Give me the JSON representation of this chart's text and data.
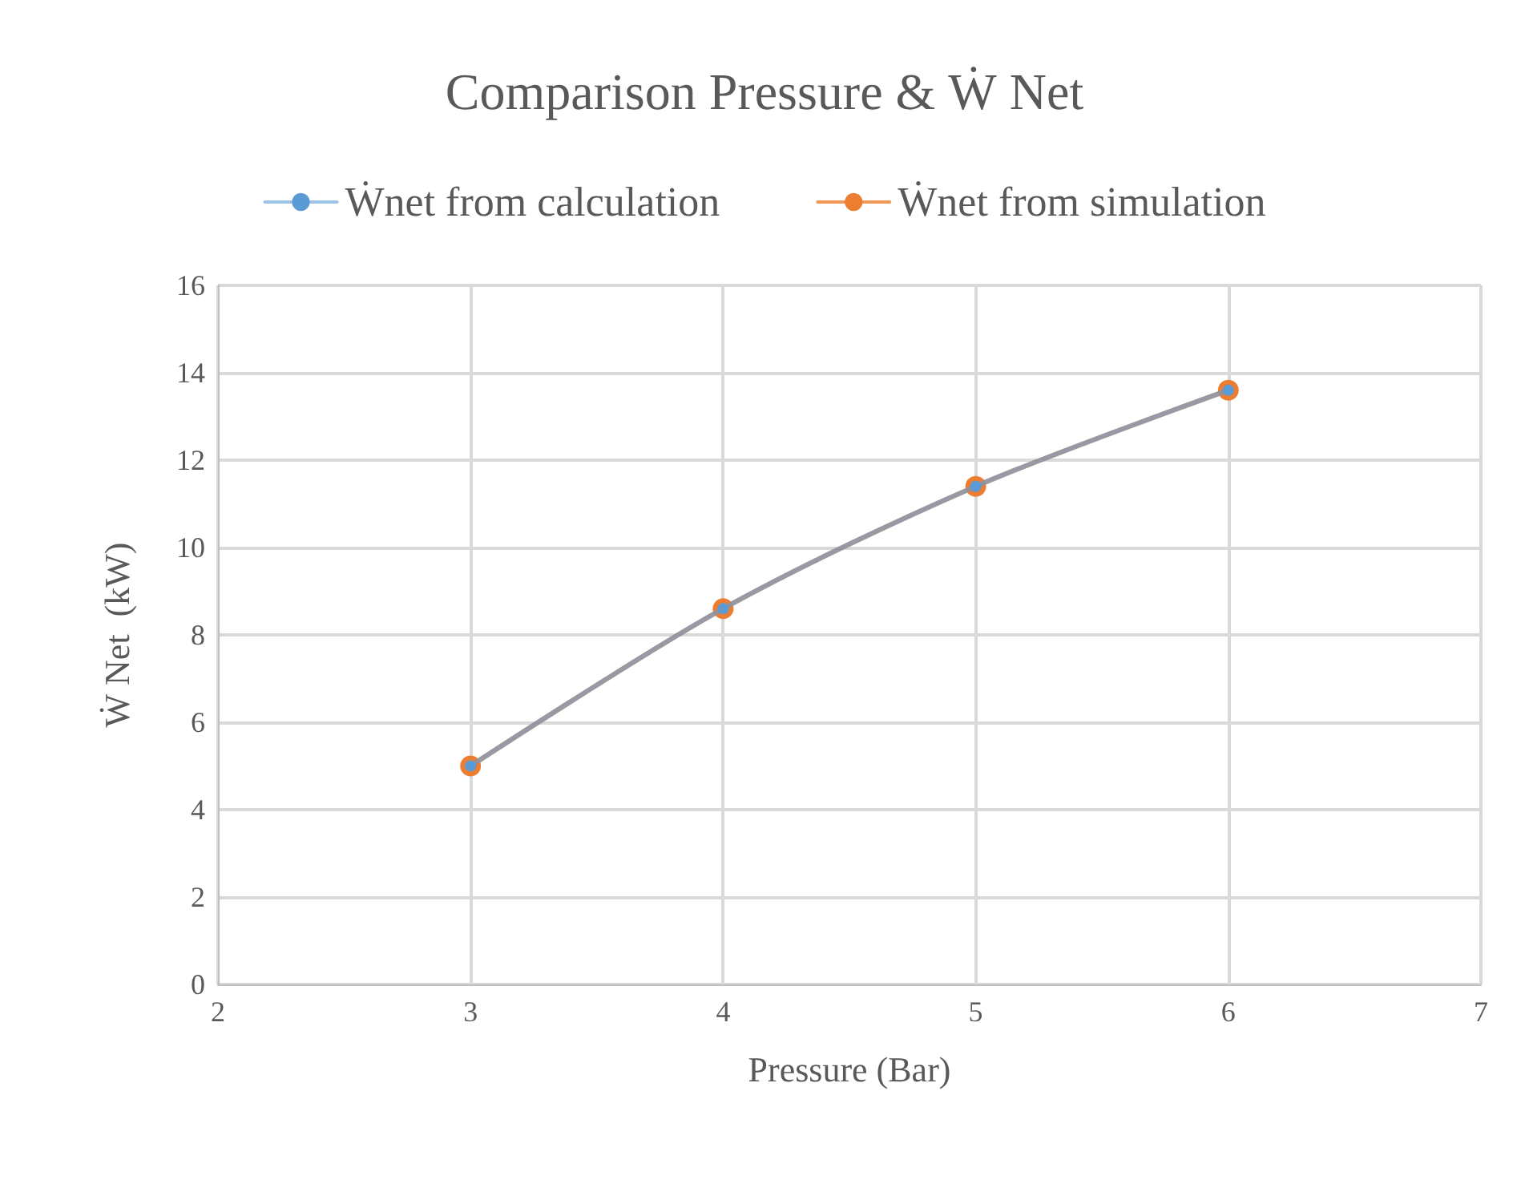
{
  "chart_data": {
    "type": "line",
    "title": "Comparison Pressure & Ẇ Net",
    "xlabel": "Pressure (Bar)",
    "ylabel": "Ẇ Net  (kW)",
    "x": [
      3,
      4,
      5,
      6
    ],
    "series": [
      {
        "name": "Ẇnet from calculation",
        "color": "#5b9bd5",
        "values": [
          5.0,
          8.6,
          11.4,
          13.6
        ]
      },
      {
        "name": "Ẇnet from simulation",
        "color": "#ed7d31",
        "values": [
          5.0,
          8.6,
          11.4,
          13.6
        ]
      }
    ],
    "xlim": [
      2,
      7
    ],
    "xticks": [
      2,
      3,
      4,
      5,
      6,
      7
    ],
    "ylim": [
      0,
      16
    ],
    "yticks": [
      0,
      2,
      4,
      6,
      8,
      10,
      12,
      14,
      16
    ],
    "grid": true,
    "legend": "top",
    "marker": "circle"
  }
}
